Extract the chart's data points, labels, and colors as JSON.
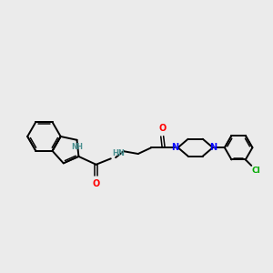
{
  "background_color": "#ebebeb",
  "bond_color": "#000000",
  "nitrogen_color": "#0000ff",
  "oxygen_color": "#ff0000",
  "chlorine_color": "#00aa00",
  "nh_color": "#4a9090",
  "figsize": [
    3.0,
    3.0
  ],
  "dpi": 100,
  "xlim": [
    0,
    10
  ],
  "ylim": [
    0,
    10
  ]
}
